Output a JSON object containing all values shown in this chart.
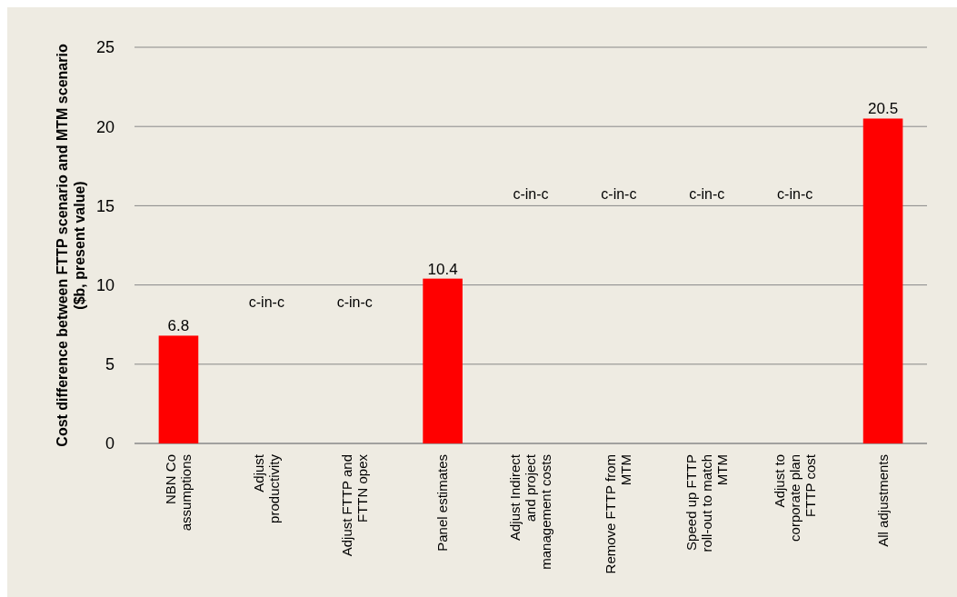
{
  "chart_data": {
    "type": "bar",
    "ylabel": "Cost difference between FTTP scenario and MTM scenario ($b, present value)",
    "categories": [
      "NBN Co assumptions",
      "Adjust productivity",
      "Adjust FTTP and FTTN opex",
      "Panel estimates",
      "Adjust Indirect and project management costs",
      "Remove FTTP from MTM",
      "Speed up FTTP roll-out to match MTM",
      "Adjust to corporate plan FTTP cost",
      "All adjustments"
    ],
    "values": [
      6.8,
      null,
      null,
      10.4,
      null,
      null,
      null,
      null,
      20.5
    ],
    "value_labels": [
      "6.8",
      "c-in-c",
      "c-in-c",
      "10.4",
      "c-in-c",
      "c-in-c",
      "c-in-c",
      "c-in-c",
      "20.5"
    ],
    "color": "#ff0000",
    "ylim": [
      0,
      25
    ],
    "yticks": [
      0,
      5,
      10,
      15,
      20,
      25
    ],
    "grid": "y"
  }
}
